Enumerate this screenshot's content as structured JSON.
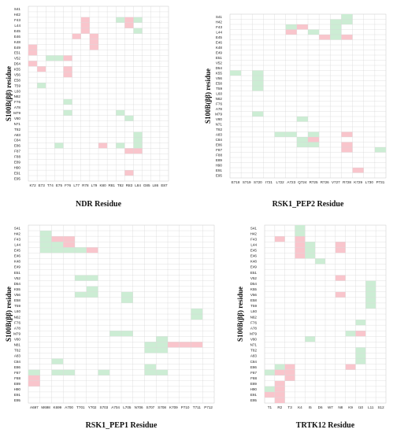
{
  "colors": {
    "green": "#ccedd4",
    "pink": "#f9c5cc"
  },
  "chart_data": [
    {
      "type": "heatmap",
      "title": "NDR Residue",
      "ylabel": "S100B(ββ) residue",
      "rows": [
        "S41",
        "H42",
        "F43",
        "L44",
        "E45",
        "E46",
        "K48",
        "E49",
        "E51",
        "V52",
        "D54",
        "K55",
        "V56",
        "E58",
        "T59",
        "L60",
        "N62",
        "F76",
        "A78",
        "M79",
        "V80",
        "N71",
        "T82",
        "A83",
        "C84",
        "E86",
        "F87",
        "F88",
        "E89",
        "H90",
        "E91",
        "E95"
      ],
      "cols": [
        "K72",
        "E73",
        "T74",
        "E75",
        "F76",
        "L77",
        "R78",
        "L79",
        "K80",
        "R81",
        "T82",
        "R83",
        "L84",
        "G85",
        "L86",
        "E87"
      ],
      "green": [
        [
          "F43",
          10
        ],
        [
          "F43",
          12
        ],
        [
          "L44",
          11
        ],
        [
          "E45",
          12
        ],
        [
          "V52",
          2
        ],
        [
          "V52",
          3
        ],
        [
          "T59",
          1
        ],
        [
          "F76",
          4
        ],
        [
          "M79",
          4
        ],
        [
          "M79",
          10
        ],
        [
          "A83",
          12
        ],
        [
          "C84",
          12
        ],
        [
          "E86",
          3
        ],
        [
          "E86",
          10
        ],
        [
          "E86",
          12
        ],
        [
          "F87",
          12
        ],
        [
          "V80",
          11
        ],
        [
          "E91",
          11
        ]
      ],
      "pink": [
        [
          "F43",
          6
        ],
        [
          "F43",
          11
        ],
        [
          "L44",
          6
        ],
        [
          "L44",
          11
        ],
        [
          "E45",
          6
        ],
        [
          "E46",
          5
        ],
        [
          "E46",
          7
        ],
        [
          "K48",
          7
        ],
        [
          "E49",
          0
        ],
        [
          "E49",
          7
        ],
        [
          "E51",
          0
        ],
        [
          "V52",
          4
        ],
        [
          "D54",
          0
        ],
        [
          "K55",
          1
        ],
        [
          "K55",
          4
        ],
        [
          "V56",
          4
        ],
        [
          "E86",
          8
        ],
        [
          "F87",
          11
        ],
        [
          "F87",
          12
        ],
        [
          "E91",
          11
        ]
      ]
    },
    {
      "type": "heatmap",
      "title": "RSK1_PEP2 Residue",
      "ylabel": "S100B(ββ) residue",
      "rows": [
        "S41",
        "H42",
        "F43",
        "L44",
        "E45",
        "E46",
        "K48",
        "E49",
        "E51",
        "V52",
        "D54",
        "K55",
        "V56",
        "E58",
        "T59",
        "L60",
        "N62",
        "F76",
        "A78",
        "M79",
        "V80",
        "N71",
        "T82",
        "A83",
        "C84",
        "E86",
        "F87",
        "F88",
        "E89",
        "H90",
        "E91",
        "E95"
      ],
      "cols": [
        "E718",
        "S719",
        "S720",
        "I721",
        "L722",
        "A723",
        "Q724",
        "R725",
        "R726",
        "V727",
        "R728",
        "K729",
        "L730",
        "P731"
      ],
      "green": [
        [
          "S41",
          10
        ],
        [
          "H42",
          9
        ],
        [
          "H42",
          10
        ],
        [
          "F43",
          5
        ],
        [
          "F43",
          9
        ],
        [
          "L44",
          7
        ],
        [
          "L44",
          9
        ],
        [
          "E45",
          9
        ],
        [
          "K55",
          0
        ],
        [
          "K55",
          2
        ],
        [
          "V56",
          2
        ],
        [
          "E58",
          2
        ],
        [
          "T59",
          2
        ],
        [
          "M79",
          2
        ],
        [
          "V80",
          6
        ],
        [
          "A83",
          4
        ],
        [
          "A83",
          5
        ],
        [
          "A83",
          7
        ],
        [
          "C84",
          6
        ],
        [
          "E86",
          6
        ],
        [
          "E86",
          7
        ],
        [
          "F87",
          13
        ]
      ],
      "pink": [
        [
          "F43",
          6
        ],
        [
          "L44",
          5
        ],
        [
          "E45",
          8
        ],
        [
          "E45",
          10
        ],
        [
          "C84",
          7
        ],
        [
          "A83",
          10
        ],
        [
          "E86",
          10
        ],
        [
          "F87",
          10
        ],
        [
          "E91",
          11
        ]
      ]
    },
    {
      "type": "heatmap",
      "title": "RSK1_PEP1 Residue",
      "ylabel": "S100B(ββ) residue",
      "rows": [
        "S41",
        "H42",
        "F43",
        "L44",
        "E45",
        "E46",
        "K48",
        "E49",
        "E51",
        "V52",
        "D54",
        "K55",
        "V56",
        "E58",
        "T59",
        "L60",
        "N62",
        "F76",
        "A78",
        "M79",
        "V80",
        "N81",
        "T82",
        "A83",
        "C84",
        "E86",
        "F87",
        "F88",
        "E89",
        "H90",
        "E91",
        "E95"
      ],
      "cols": [
        "A697",
        "M698",
        "K699",
        "A700",
        "T701",
        "Y702",
        "S703",
        "A704",
        "L705",
        "N706",
        "S707",
        "S708",
        "K709",
        "P710",
        "T711",
        "P712"
      ],
      "green": [
        [
          "H42",
          1
        ],
        [
          "F43",
          1
        ],
        [
          "L44",
          1
        ],
        [
          "L44",
          2
        ],
        [
          "E45",
          1
        ],
        [
          "E45",
          2
        ],
        [
          "E45",
          3
        ],
        [
          "E45",
          4
        ],
        [
          "V52",
          4
        ],
        [
          "V52",
          5
        ],
        [
          "K55",
          5
        ],
        [
          "V56",
          4
        ],
        [
          "V56",
          5
        ],
        [
          "V56",
          8
        ],
        [
          "E58",
          8
        ],
        [
          "L60",
          14
        ],
        [
          "N62",
          14
        ],
        [
          "M79",
          7
        ],
        [
          "M79",
          8
        ],
        [
          "V80",
          11
        ],
        [
          "N81",
          10
        ],
        [
          "N81",
          11
        ],
        [
          "T82",
          10
        ],
        [
          "T82",
          11
        ],
        [
          "C84",
          2
        ],
        [
          "E86",
          10
        ],
        [
          "F87",
          0
        ],
        [
          "F87",
          2
        ],
        [
          "F87",
          3
        ],
        [
          "F87",
          6
        ],
        [
          "F87",
          10
        ],
        [
          "F87",
          11
        ]
      ],
      "pink": [
        [
          "F43",
          2
        ],
        [
          "F43",
          3
        ],
        [
          "L44",
          3
        ],
        [
          "E45",
          5
        ],
        [
          "N81",
          12
        ],
        [
          "N81",
          13
        ],
        [
          "N81",
          14
        ],
        [
          "F88",
          0
        ],
        [
          "E89",
          0
        ]
      ]
    },
    {
      "type": "heatmap",
      "title": "TRTK12 Residue",
      "ylabel": "S100B(ββ) residue",
      "rows": [
        "S41",
        "H42",
        "F43",
        "L44",
        "E45",
        "E46",
        "K48",
        "E49",
        "E51",
        "V52",
        "D54",
        "K55",
        "V56",
        "E58",
        "T59",
        "L60",
        "N62",
        "F76",
        "A78",
        "M79",
        "V80",
        "N71",
        "T82",
        "A83",
        "C84",
        "E86",
        "F87",
        "F88",
        "E89",
        "H90",
        "E91",
        "E95"
      ],
      "cols": [
        "T1",
        "R2",
        "T3",
        "K4",
        "I5",
        "D6",
        "W7",
        "N8",
        "K9",
        "I10",
        "L11",
        "S12"
      ],
      "green": [
        [
          "S41",
          3
        ],
        [
          "H42",
          3
        ],
        [
          "F43",
          3
        ],
        [
          "L44",
          4
        ],
        [
          "E45",
          4
        ],
        [
          "E46",
          4
        ],
        [
          "K48",
          5
        ],
        [
          "D54",
          10
        ],
        [
          "K55",
          10
        ],
        [
          "V56",
          10
        ],
        [
          "E58",
          10
        ],
        [
          "T59",
          10
        ],
        [
          "F76",
          9
        ],
        [
          "M79",
          8
        ],
        [
          "M79",
          9
        ],
        [
          "V80",
          4
        ],
        [
          "A83",
          9
        ],
        [
          "T82",
          9
        ],
        [
          "E86",
          1
        ],
        [
          "F87",
          0
        ],
        [
          "F87",
          1
        ],
        [
          "F87",
          2
        ],
        [
          "C84",
          9
        ],
        [
          "F88",
          2
        ],
        [
          "H90",
          0
        ]
      ],
      "pink": [
        [
          "F43",
          1
        ],
        [
          "F43",
          3
        ],
        [
          "L44",
          3
        ],
        [
          "L44",
          7
        ],
        [
          "E45",
          3
        ],
        [
          "E45",
          7
        ],
        [
          "E46",
          3
        ],
        [
          "V52",
          7
        ],
        [
          "V56",
          7
        ],
        [
          "M79",
          9
        ],
        [
          "E86",
          2
        ],
        [
          "E86",
          8
        ],
        [
          "F87",
          1
        ],
        [
          "F87",
          2
        ],
        [
          "F88",
          2
        ],
        [
          "E89",
          1
        ],
        [
          "H90",
          1
        ],
        [
          "E91",
          0
        ],
        [
          "E91",
          1
        ],
        [
          "E95",
          1
        ]
      ]
    }
  ]
}
